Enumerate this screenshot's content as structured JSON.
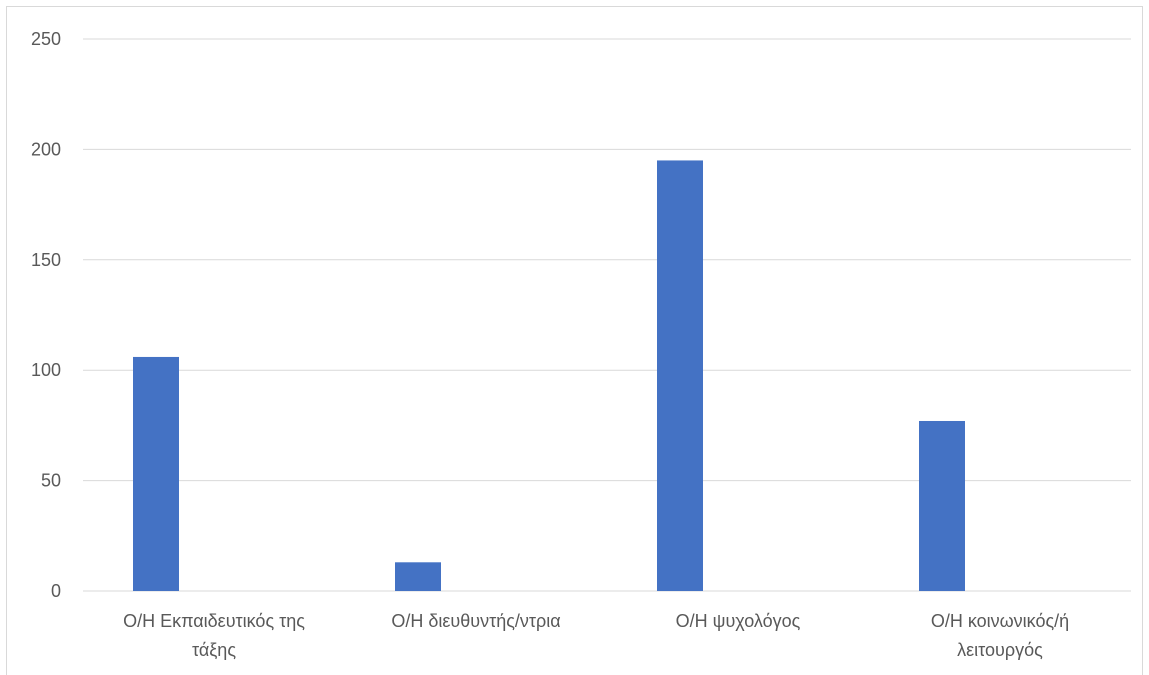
{
  "chart_data": {
    "type": "bar",
    "categories": [
      [
        "Ο/Η Εκπαιδευτικός της",
        "τάξης"
      ],
      [
        "Ο/Η διευθυντής/ντρια"
      ],
      [
        "Ο/Η ψυχολόγος"
      ],
      [
        "Ο/Η κοινωνικός/ή",
        "λειτουργός"
      ]
    ],
    "values": [
      106,
      13,
      195,
      77
    ],
    "ylim": [
      0,
      250
    ],
    "yticks": [
      0,
      50,
      100,
      150,
      200,
      250
    ],
    "grid": true,
    "bar_color": "#4472C4",
    "grid_color": "#d9d9d9",
    "title": "",
    "xlabel": "",
    "ylabel": ""
  }
}
